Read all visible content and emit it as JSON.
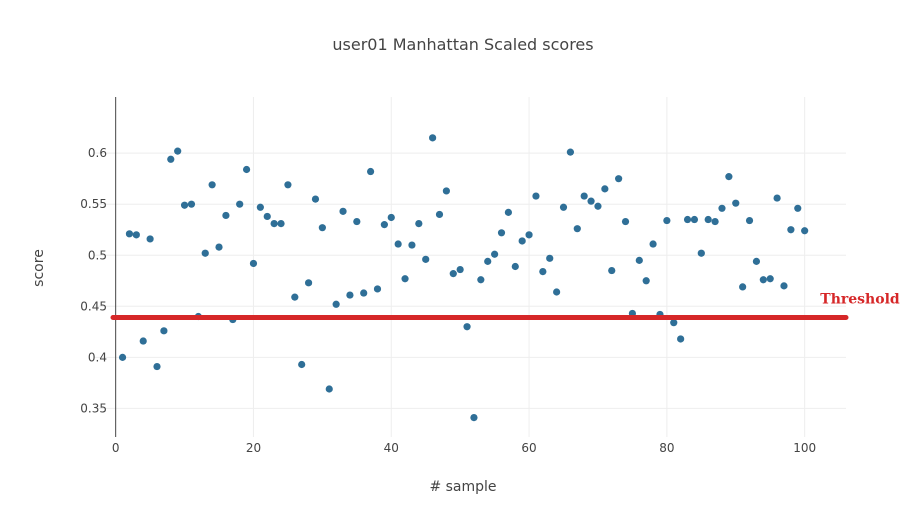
{
  "chart_data": {
    "type": "scatter",
    "title": "user01 Manhattan Scaled scores",
    "xlabel": "# sample",
    "ylabel": "score",
    "xlim": [
      -3,
      106
    ],
    "ylim": [
      0.322,
      0.655
    ],
    "xticks": [
      0,
      20,
      40,
      60,
      80,
      100
    ],
    "xtick_labels": [
      "0",
      "20",
      "40",
      "60",
      "80",
      "100"
    ],
    "yticks": [
      0.35,
      0.4,
      0.45,
      0.5,
      0.55,
      0.6
    ],
    "ytick_labels": [
      "0.35",
      "0.4",
      "0.45",
      "0.5",
      "0.55",
      "0.6"
    ],
    "grid": true,
    "marker_color": "#2f6f97",
    "threshold": {
      "y": 0.439,
      "label": "Threshold",
      "color": "#d62728"
    },
    "x": [
      1,
      2,
      3,
      4,
      5,
      6,
      7,
      8,
      9,
      10,
      11,
      12,
      13,
      14,
      15,
      16,
      17,
      18,
      19,
      20,
      21,
      22,
      23,
      24,
      25,
      26,
      27,
      28,
      29,
      30,
      31,
      32,
      33,
      34,
      35,
      36,
      37,
      38,
      39,
      40,
      41,
      42,
      43,
      44,
      45,
      46,
      47,
      48,
      49,
      50,
      51,
      52,
      53,
      54,
      55,
      56,
      57,
      58,
      59,
      60,
      61,
      62,
      63,
      64,
      65,
      66,
      67,
      68,
      69,
      70,
      71,
      72,
      73,
      74,
      75,
      76,
      77,
      78,
      79,
      80,
      81,
      82,
      83,
      84,
      85,
      86,
      87,
      88,
      89,
      90,
      91,
      92,
      93,
      94,
      95,
      96,
      97,
      98,
      99,
      100
    ],
    "y": [
      0.4,
      0.521,
      0.52,
      0.416,
      0.516,
      0.391,
      0.426,
      0.594,
      0.602,
      0.549,
      0.55,
      0.44,
      0.502,
      0.569,
      0.508,
      0.539,
      0.437,
      0.55,
      0.584,
      0.492,
      0.547,
      0.538,
      0.531,
      0.531,
      0.569,
      0.459,
      0.393,
      0.473,
      0.555,
      0.527,
      0.369,
      0.452,
      0.543,
      0.461,
      0.533,
      0.463,
      0.582,
      0.467,
      0.53,
      0.537,
      0.511,
      0.477,
      0.51,
      0.531,
      0.496,
      0.615,
      0.54,
      0.563,
      0.482,
      0.486,
      0.43,
      0.341,
      0.476,
      0.494,
      0.501,
      0.522,
      0.542,
      0.489,
      0.514,
      0.52,
      0.558,
      0.484,
      0.497,
      0.464,
      0.547,
      0.601,
      0.526,
      0.558,
      0.553,
      0.548,
      0.565,
      0.485,
      0.575,
      0.533,
      0.443,
      0.495,
      0.475,
      0.511,
      0.442,
      0.534,
      0.434,
      0.418,
      0.535,
      0.535,
      0.502,
      0.535,
      0.533,
      0.546,
      0.577,
      0.551,
      0.469,
      0.534,
      0.494,
      0.476,
      0.477,
      0.556,
      0.47,
      0.525,
      0.546,
      0.524
    ]
  }
}
